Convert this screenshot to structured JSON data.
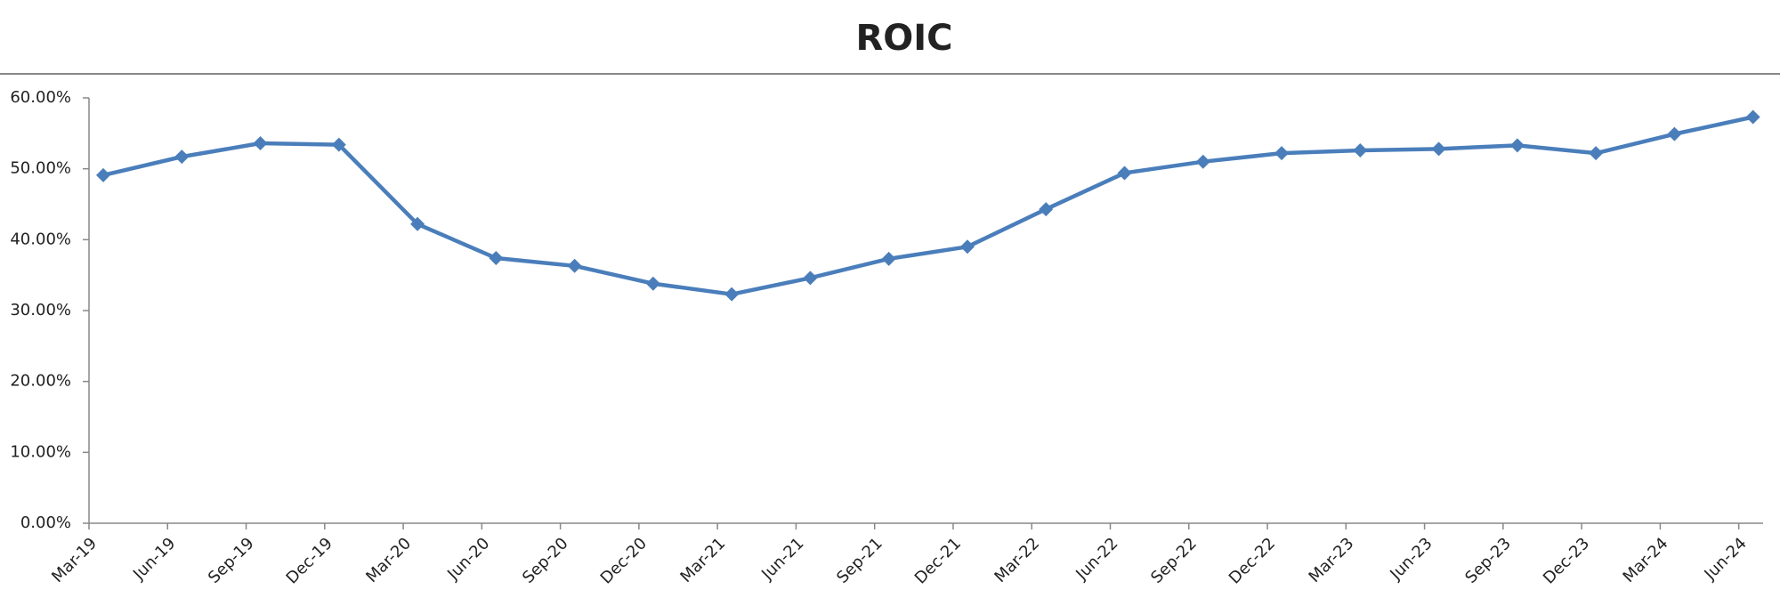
{
  "chart_data": {
    "type": "line",
    "title": "ROIC",
    "categories": [
      "Mar-19",
      "Jun-19",
      "Sep-19",
      "Dec-19",
      "Mar-20",
      "Jun-20",
      "Sep-20",
      "Dec-20",
      "Mar-21",
      "Jun-21",
      "Sep-21",
      "Dec-21",
      "Mar-22",
      "Jun-22",
      "Sep-22",
      "Dec-22",
      "Mar-23",
      "Jun-23",
      "Sep-23",
      "Dec-23",
      "Mar-24",
      "Jun-24"
    ],
    "series": [
      {
        "color": "#4a7ebb",
        "values": [
          49.1,
          51.7,
          53.6,
          53.4,
          42.2,
          37.4,
          36.3,
          33.8,
          32.3,
          34.6,
          37.3,
          39.0,
          44.3,
          49.4,
          51.0,
          52.2,
          52.6,
          52.8,
          53.3,
          52.2,
          54.9,
          57.3
        ]
      }
    ],
    "ylim": [
      0,
      60
    ],
    "yticks": [
      {
        "value": 0,
        "label": "0.00%"
      },
      {
        "value": 10,
        "label": "10.00%"
      },
      {
        "value": 20,
        "label": "20.00%"
      },
      {
        "value": 30,
        "label": "30.00%"
      },
      {
        "value": 40,
        "label": "40.00%"
      },
      {
        "value": 50,
        "label": "50.00%"
      },
      {
        "value": 60,
        "label": "60.00%"
      }
    ],
    "grid": false
  }
}
